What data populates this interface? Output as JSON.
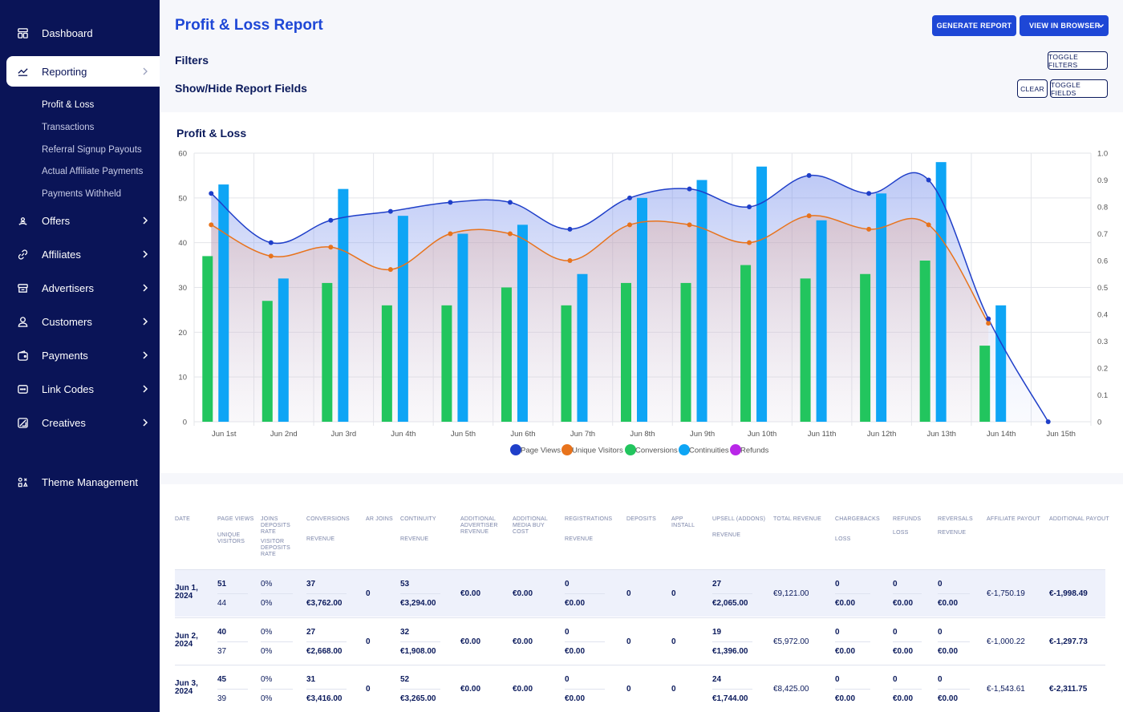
{
  "sidebar": {
    "items": [
      {
        "label": "Dashboard",
        "icon": "dashboard-icon"
      },
      {
        "label": "Reporting",
        "icon": "chart-line-icon"
      },
      {
        "label": "Offers",
        "icon": "offers-icon"
      },
      {
        "label": "Affiliates",
        "icon": "link-icon"
      },
      {
        "label": "Advertisers",
        "icon": "advertiser-icon"
      },
      {
        "label": "Customers",
        "icon": "user-icon"
      },
      {
        "label": "Payments",
        "icon": "wallet-icon"
      },
      {
        "label": "Link Codes",
        "icon": "code-icon"
      },
      {
        "label": "Creatives",
        "icon": "brush-icon"
      },
      {
        "label": "Theme Management",
        "icon": "theme-icon"
      }
    ],
    "reporting_sub": [
      "Profit & Loss",
      "Transactions",
      "Referral Signup Payouts",
      "Actual Affiliate Payments",
      "Payments Withheld"
    ]
  },
  "header": {
    "title": "Profit & Loss Report",
    "generate_label": "GENERATE REPORT",
    "view_label": "VIEW IN BROWSER",
    "filters_label": "Filters",
    "toggle_filters": "TOGGLE FILTERS",
    "fields_label": "Show/Hide Report Fields",
    "clear_label": "CLEAR",
    "toggle_fields": "TOGGLE FIELDS"
  },
  "colors": {
    "accent": "#1e47d6",
    "sidebar": "#0a1457",
    "page_views": "#1f3fc9",
    "unique_visitors": "#e8731c",
    "conversions": "#22c55e",
    "continuities": "#0ea5f5",
    "refunds": "#b927e8"
  },
  "chart_data": {
    "type": "bar",
    "title": "Profit & Loss",
    "categories": [
      "Jun 1st",
      "Jun 2nd",
      "Jun 3rd",
      "Jun 4th",
      "Jun 5th",
      "Jun 6th",
      "Jun 7th",
      "Jun 8th",
      "Jun 9th",
      "Jun 10th",
      "Jun 11th",
      "Jun 12th",
      "Jun 13th",
      "Jun 14th",
      "Jun 15th"
    ],
    "ylim": [
      0,
      60
    ],
    "yticks": [
      0,
      10,
      20,
      30,
      40,
      50,
      60
    ],
    "y2lim": [
      0,
      1.0
    ],
    "y2ticks": [
      "0",
      "0.1",
      "0.2",
      "0.3",
      "0.4",
      "0.5",
      "0.6",
      "0.7",
      "0.8",
      "0.9",
      "1.0"
    ],
    "series": [
      {
        "name": "Page Views",
        "kind": "line",
        "values": [
          51,
          40,
          45,
          47,
          49,
          49,
          43,
          50,
          52,
          48,
          55,
          51,
          54,
          23,
          0
        ]
      },
      {
        "name": "Unique Visitors",
        "kind": "line",
        "values": [
          44,
          37,
          39,
          34,
          42,
          42,
          36,
          44,
          44,
          40,
          46,
          43,
          44,
          22,
          null
        ]
      },
      {
        "name": "Conversions",
        "kind": "bar",
        "values": [
          37,
          27,
          31,
          26,
          26,
          30,
          26,
          31,
          31,
          35,
          32,
          33,
          36,
          17,
          null
        ]
      },
      {
        "name": "Continuities",
        "kind": "bar",
        "values": [
          53,
          32,
          52,
          46,
          42,
          44,
          33,
          50,
          54,
          57,
          45,
          51,
          58,
          26,
          null
        ]
      },
      {
        "name": "Refunds",
        "kind": "bar",
        "values": [
          null,
          null,
          null,
          null,
          null,
          null,
          null,
          null,
          null,
          null,
          null,
          null,
          null,
          null,
          null
        ]
      }
    ],
    "legend_position": "bottom",
    "grid": true
  },
  "table": {
    "headers": [
      {
        "l1": "DATE"
      },
      {
        "l1": "PAGE VIEWS",
        "l2": "UNIQUE VISITORS"
      },
      {
        "l1": "JOINS DEPOSITS RATE",
        "l2": "VISITOR DEPOSITS RATE"
      },
      {
        "l1": "CONVERSIONS",
        "l2": "REVENUE"
      },
      {
        "l1": "AR JOINS"
      },
      {
        "l1": "CONTINUITY",
        "l2": "REVENUE"
      },
      {
        "l1": "ADDITIONAL ADVERTISER REVENUE"
      },
      {
        "l1": "ADDITIONAL MEDIA BUY COST"
      },
      {
        "l1": "REGISTRATIONS",
        "l2": "REVENUE"
      },
      {
        "l1": "DEPOSITS"
      },
      {
        "l1": "APP INSTALL"
      },
      {
        "l1": "UPSELL (ADDONS)",
        "l2": "REVENUE"
      },
      {
        "l1": "TOTAL REVENUE"
      },
      {
        "l1": "CHARGEBACKS",
        "l2": "LOSS"
      },
      {
        "l1": "REFUNDS",
        "l2": "LOSS"
      },
      {
        "l1": "REVERSALS",
        "l2": "REVENUE"
      },
      {
        "l1": "AFFILIATE PAYOUT"
      },
      {
        "l1": "ADDITIONAL PAYOUT"
      }
    ],
    "rows": [
      {
        "date": "Jun 1, 2024",
        "pv": "51",
        "uv": "44",
        "jdr": "0%",
        "vdr": "0%",
        "conv": "37",
        "conv_rev": "€3,762.00",
        "ar": "0",
        "cont": "53",
        "cont_rev": "€3,294.00",
        "aar": "€0.00",
        "ambc": "€0.00",
        "reg": "0",
        "reg_rev": "€0.00",
        "dep": "0",
        "app": "0",
        "ups": "27",
        "ups_rev": "€2,065.00",
        "total": "€9,121.00",
        "cb": "0",
        "cb_loss": "€0.00",
        "ref": "0",
        "ref_loss": "€0.00",
        "rev": "0",
        "rev_rev": "€0.00",
        "aff": "€-1,750.19",
        "add": "€-1,998.49"
      },
      {
        "date": "Jun 2, 2024",
        "pv": "40",
        "uv": "37",
        "jdr": "0%",
        "vdr": "0%",
        "conv": "27",
        "conv_rev": "€2,668.00",
        "ar": "0",
        "cont": "32",
        "cont_rev": "€1,908.00",
        "aar": "€0.00",
        "ambc": "€0.00",
        "reg": "0",
        "reg_rev": "€0.00",
        "dep": "0",
        "app": "0",
        "ups": "19",
        "ups_rev": "€1,396.00",
        "total": "€5,972.00",
        "cb": "0",
        "cb_loss": "€0.00",
        "ref": "0",
        "ref_loss": "€0.00",
        "rev": "0",
        "rev_rev": "€0.00",
        "aff": "€-1,000.22",
        "add": "€-1,297.73"
      },
      {
        "date": "Jun 3, 2024",
        "pv": "45",
        "uv": "39",
        "jdr": "0%",
        "vdr": "0%",
        "conv": "31",
        "conv_rev": "€3,416.00",
        "ar": "0",
        "cont": "52",
        "cont_rev": "€3,265.00",
        "aar": "€0.00",
        "ambc": "€0.00",
        "reg": "0",
        "reg_rev": "€0.00",
        "dep": "0",
        "app": "0",
        "ups": "24",
        "ups_rev": "€1,744.00",
        "total": "€8,425.00",
        "cb": "0",
        "cb_loss": "€0.00",
        "ref": "0",
        "ref_loss": "€0.00",
        "rev": "0",
        "rev_rev": "€0.00",
        "aff": "€-1,543.61",
        "add": "€-2,311.75"
      }
    ]
  }
}
